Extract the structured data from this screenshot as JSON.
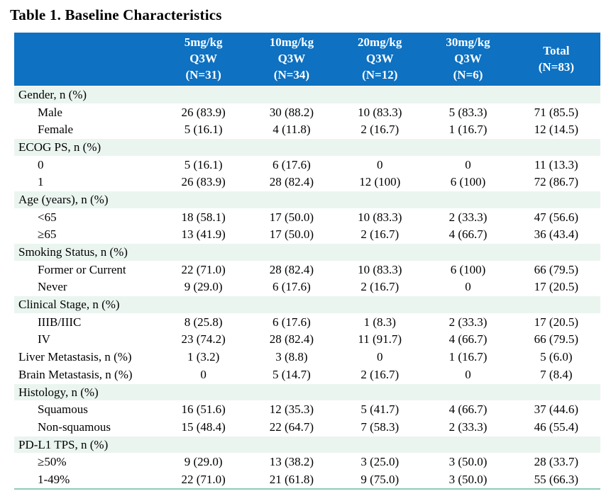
{
  "title": "Table 1. Baseline Characteristics",
  "colors": {
    "header_bg": "#0E71C1",
    "header_text": "#FFFFFF",
    "section_row_bg": "#EBF5F0",
    "bottom_rule": "#8FCBB6",
    "body_text": "#000000"
  },
  "table": {
    "column_headers": [
      {
        "lines": [
          "5mg/kg",
          "Q3W",
          "(N=31)"
        ]
      },
      {
        "lines": [
          "10mg/kg",
          "Q3W",
          "(N=34)"
        ]
      },
      {
        "lines": [
          "20mg/kg",
          "Q3W",
          "(N=12)"
        ]
      },
      {
        "lines": [
          "30mg/kg",
          "Q3W",
          "(N=6)"
        ]
      },
      {
        "lines": [
          "Total",
          "(N=83)"
        ]
      }
    ],
    "rows": [
      {
        "label": "Gender, n (%)",
        "style": "section",
        "values": [
          "",
          "",
          "",
          "",
          ""
        ]
      },
      {
        "label": "Male",
        "style": "indent",
        "values": [
          "26 (83.9)",
          "30 (88.2)",
          "10 (83.3)",
          "5 (83.3)",
          "71 (85.5)"
        ]
      },
      {
        "label": "Female",
        "style": "indent",
        "values": [
          "5 (16.1)",
          "4 (11.8)",
          "2 (16.7)",
          "1 (16.7)",
          "12 (14.5)"
        ]
      },
      {
        "label": "ECOG PS, n (%)",
        "style": "section",
        "values": [
          "",
          "",
          "",
          "",
          ""
        ]
      },
      {
        "label": "0",
        "style": "indent",
        "values": [
          "5 (16.1)",
          "6 (17.6)",
          "0",
          "0",
          "11 (13.3)"
        ]
      },
      {
        "label": "1",
        "style": "indent",
        "values": [
          "26 (83.9)",
          "28 (82.4)",
          "12 (100)",
          "6 (100)",
          "72 (86.7)"
        ]
      },
      {
        "label": "Age (years), n (%)",
        "style": "section",
        "values": [
          "",
          "",
          "",
          "",
          ""
        ]
      },
      {
        "label": "<65",
        "style": "indent",
        "values": [
          "18 (58.1)",
          "17 (50.0)",
          "10 (83.3)",
          "2 (33.3)",
          "47 (56.6)"
        ]
      },
      {
        "label": "≥65",
        "style": "indent",
        "values": [
          "13 (41.9)",
          "17 (50.0)",
          "2 (16.7)",
          "4 (66.7)",
          "36 (43.4)"
        ]
      },
      {
        "label": "Smoking Status, n (%)",
        "style": "section",
        "values": [
          "",
          "",
          "",
          "",
          ""
        ]
      },
      {
        "label": "Former or Current",
        "style": "indent",
        "values": [
          "22 (71.0)",
          "28 (82.4)",
          "10 (83.3)",
          "6 (100)",
          "66 (79.5)"
        ]
      },
      {
        "label": "Never",
        "style": "indent",
        "values": [
          "9 (29.0)",
          "6 (17.6)",
          "2 (16.7)",
          "0",
          "17 (20.5)"
        ]
      },
      {
        "label": "Clinical Stage, n (%)",
        "style": "section",
        "values": [
          "",
          "",
          "",
          "",
          ""
        ]
      },
      {
        "label": "IIIB/IIIC",
        "style": "indent",
        "values": [
          "8 (25.8)",
          "6 (17.6)",
          "1 (8.3)",
          "2 (33.3)",
          "17 (20.5)"
        ]
      },
      {
        "label": "IV",
        "style": "indent",
        "values": [
          "23 (74.2)",
          "28 (82.4)",
          "11 (91.7)",
          "4 (66.7)",
          "66 (79.5)"
        ]
      },
      {
        "label": "Liver Metastasis, n (%)",
        "style": "flat",
        "values": [
          "1 (3.2)",
          "3 (8.8)",
          "0",
          "1 (16.7)",
          "5 (6.0)"
        ]
      },
      {
        "label": "Brain Metastasis, n (%)",
        "style": "flat",
        "values": [
          "0",
          "5 (14.7)",
          "2 (16.7)",
          "0",
          "7 (8.4)"
        ]
      },
      {
        "label": "Histology, n (%)",
        "style": "section",
        "values": [
          "",
          "",
          "",
          "",
          ""
        ]
      },
      {
        "label": "Squamous",
        "style": "indent",
        "values": [
          "16 (51.6)",
          "12 (35.3)",
          "5 (41.7)",
          "4 (66.7)",
          "37 (44.6)"
        ]
      },
      {
        "label": "Non-squamous",
        "style": "indent",
        "values": [
          "15 (48.4)",
          "22 (64.7)",
          "7 (58.3)",
          "2 (33.3)",
          "46 (55.4)"
        ]
      },
      {
        "label": "PD-L1 TPS, n (%)",
        "style": "section",
        "values": [
          "",
          "",
          "",
          "",
          ""
        ]
      },
      {
        "label": "≥50%",
        "style": "indent",
        "values": [
          "9 (29.0)",
          "13 (38.2)",
          "3 (25.0)",
          "3 (50.0)",
          "28 (33.7)"
        ]
      },
      {
        "label": "1-49%",
        "style": "indent",
        "values": [
          "22 (71.0)",
          "21 (61.8)",
          "9 (75.0)",
          "3 (50.0)",
          "55 (66.3)"
        ]
      }
    ]
  }
}
